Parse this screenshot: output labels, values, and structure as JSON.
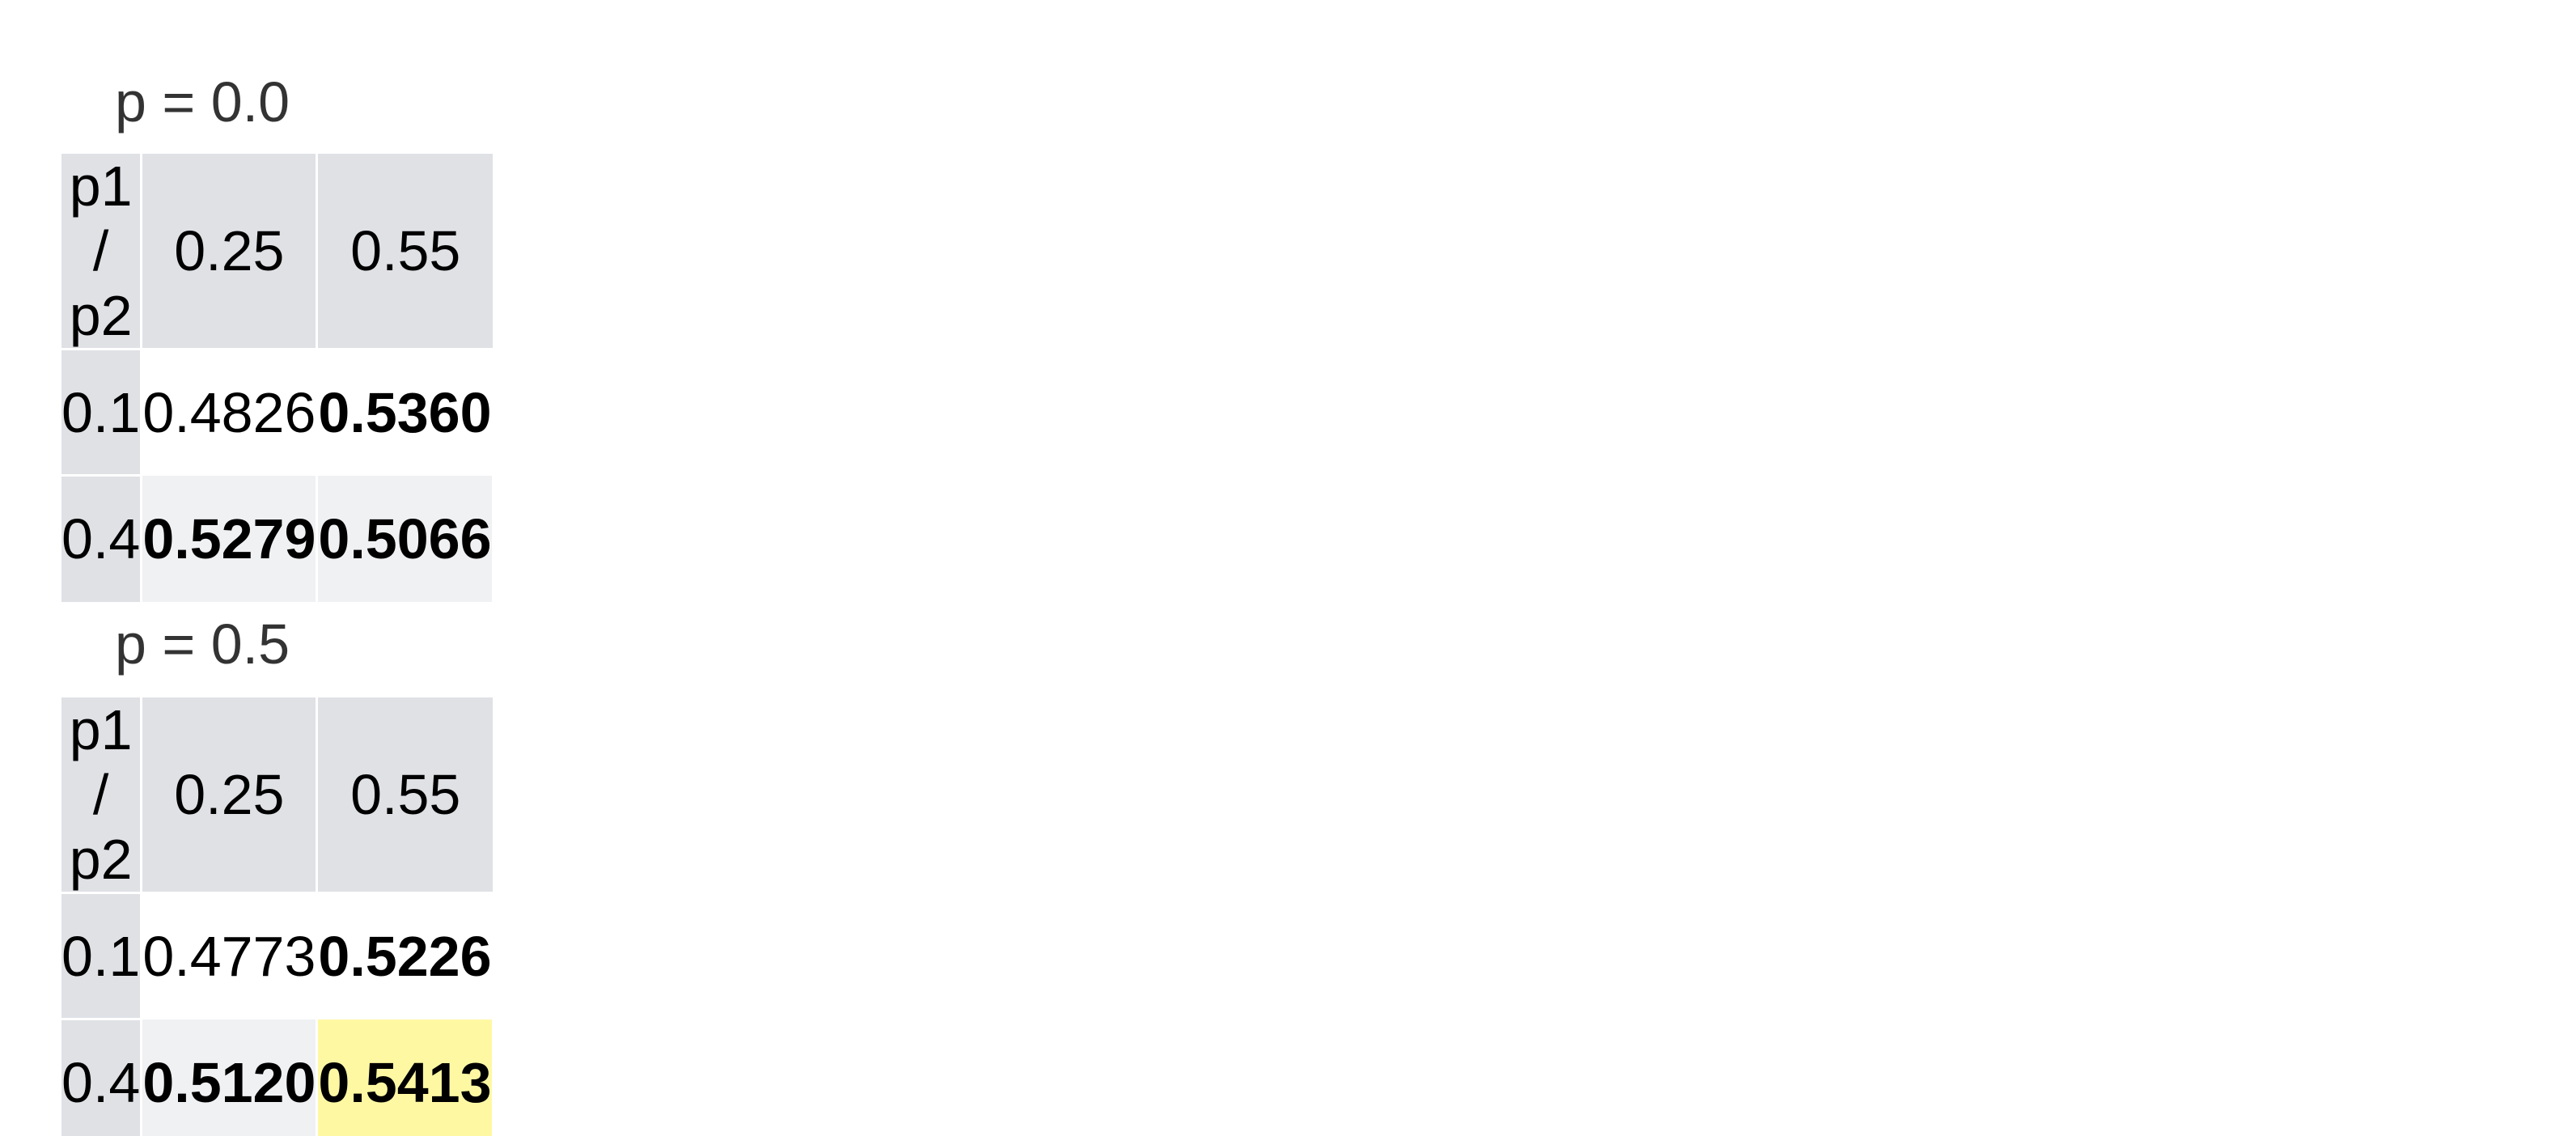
{
  "chart_data": [
    {
      "type": "table",
      "title": "p = 0.0",
      "corner_label": "p1 / p2",
      "columns": [
        "0.25",
        "0.55"
      ],
      "rows": [
        {
          "label": "0.1",
          "cells": [
            {
              "value": "0.4826",
              "bold": false,
              "highlight": false
            },
            {
              "value": "0.5360",
              "bold": true,
              "highlight": false
            }
          ]
        },
        {
          "label": "0.4",
          "cells": [
            {
              "value": "0.5279",
              "bold": true,
              "highlight": false
            },
            {
              "value": "0.5066",
              "bold": true,
              "highlight": false
            }
          ]
        }
      ]
    },
    {
      "type": "table",
      "title": "p = 0.5",
      "corner_label": "p1 / p2",
      "columns": [
        "0.25",
        "0.55"
      ],
      "rows": [
        {
          "label": "0.1",
          "cells": [
            {
              "value": "0.4773",
              "bold": false,
              "highlight": false
            },
            {
              "value": "0.5226",
              "bold": true,
              "highlight": false
            }
          ]
        },
        {
          "label": "0.4",
          "cells": [
            {
              "value": "0.5120",
              "bold": true,
              "highlight": false
            },
            {
              "value": "0.5413",
              "bold": true,
              "highlight": true
            }
          ]
        }
      ]
    }
  ],
  "colors": {
    "header_bg": "#dfe1e5",
    "alt_row_bg": "#f0f1f3",
    "highlight_bg": "#fff8a3",
    "title_text": "#333333"
  }
}
